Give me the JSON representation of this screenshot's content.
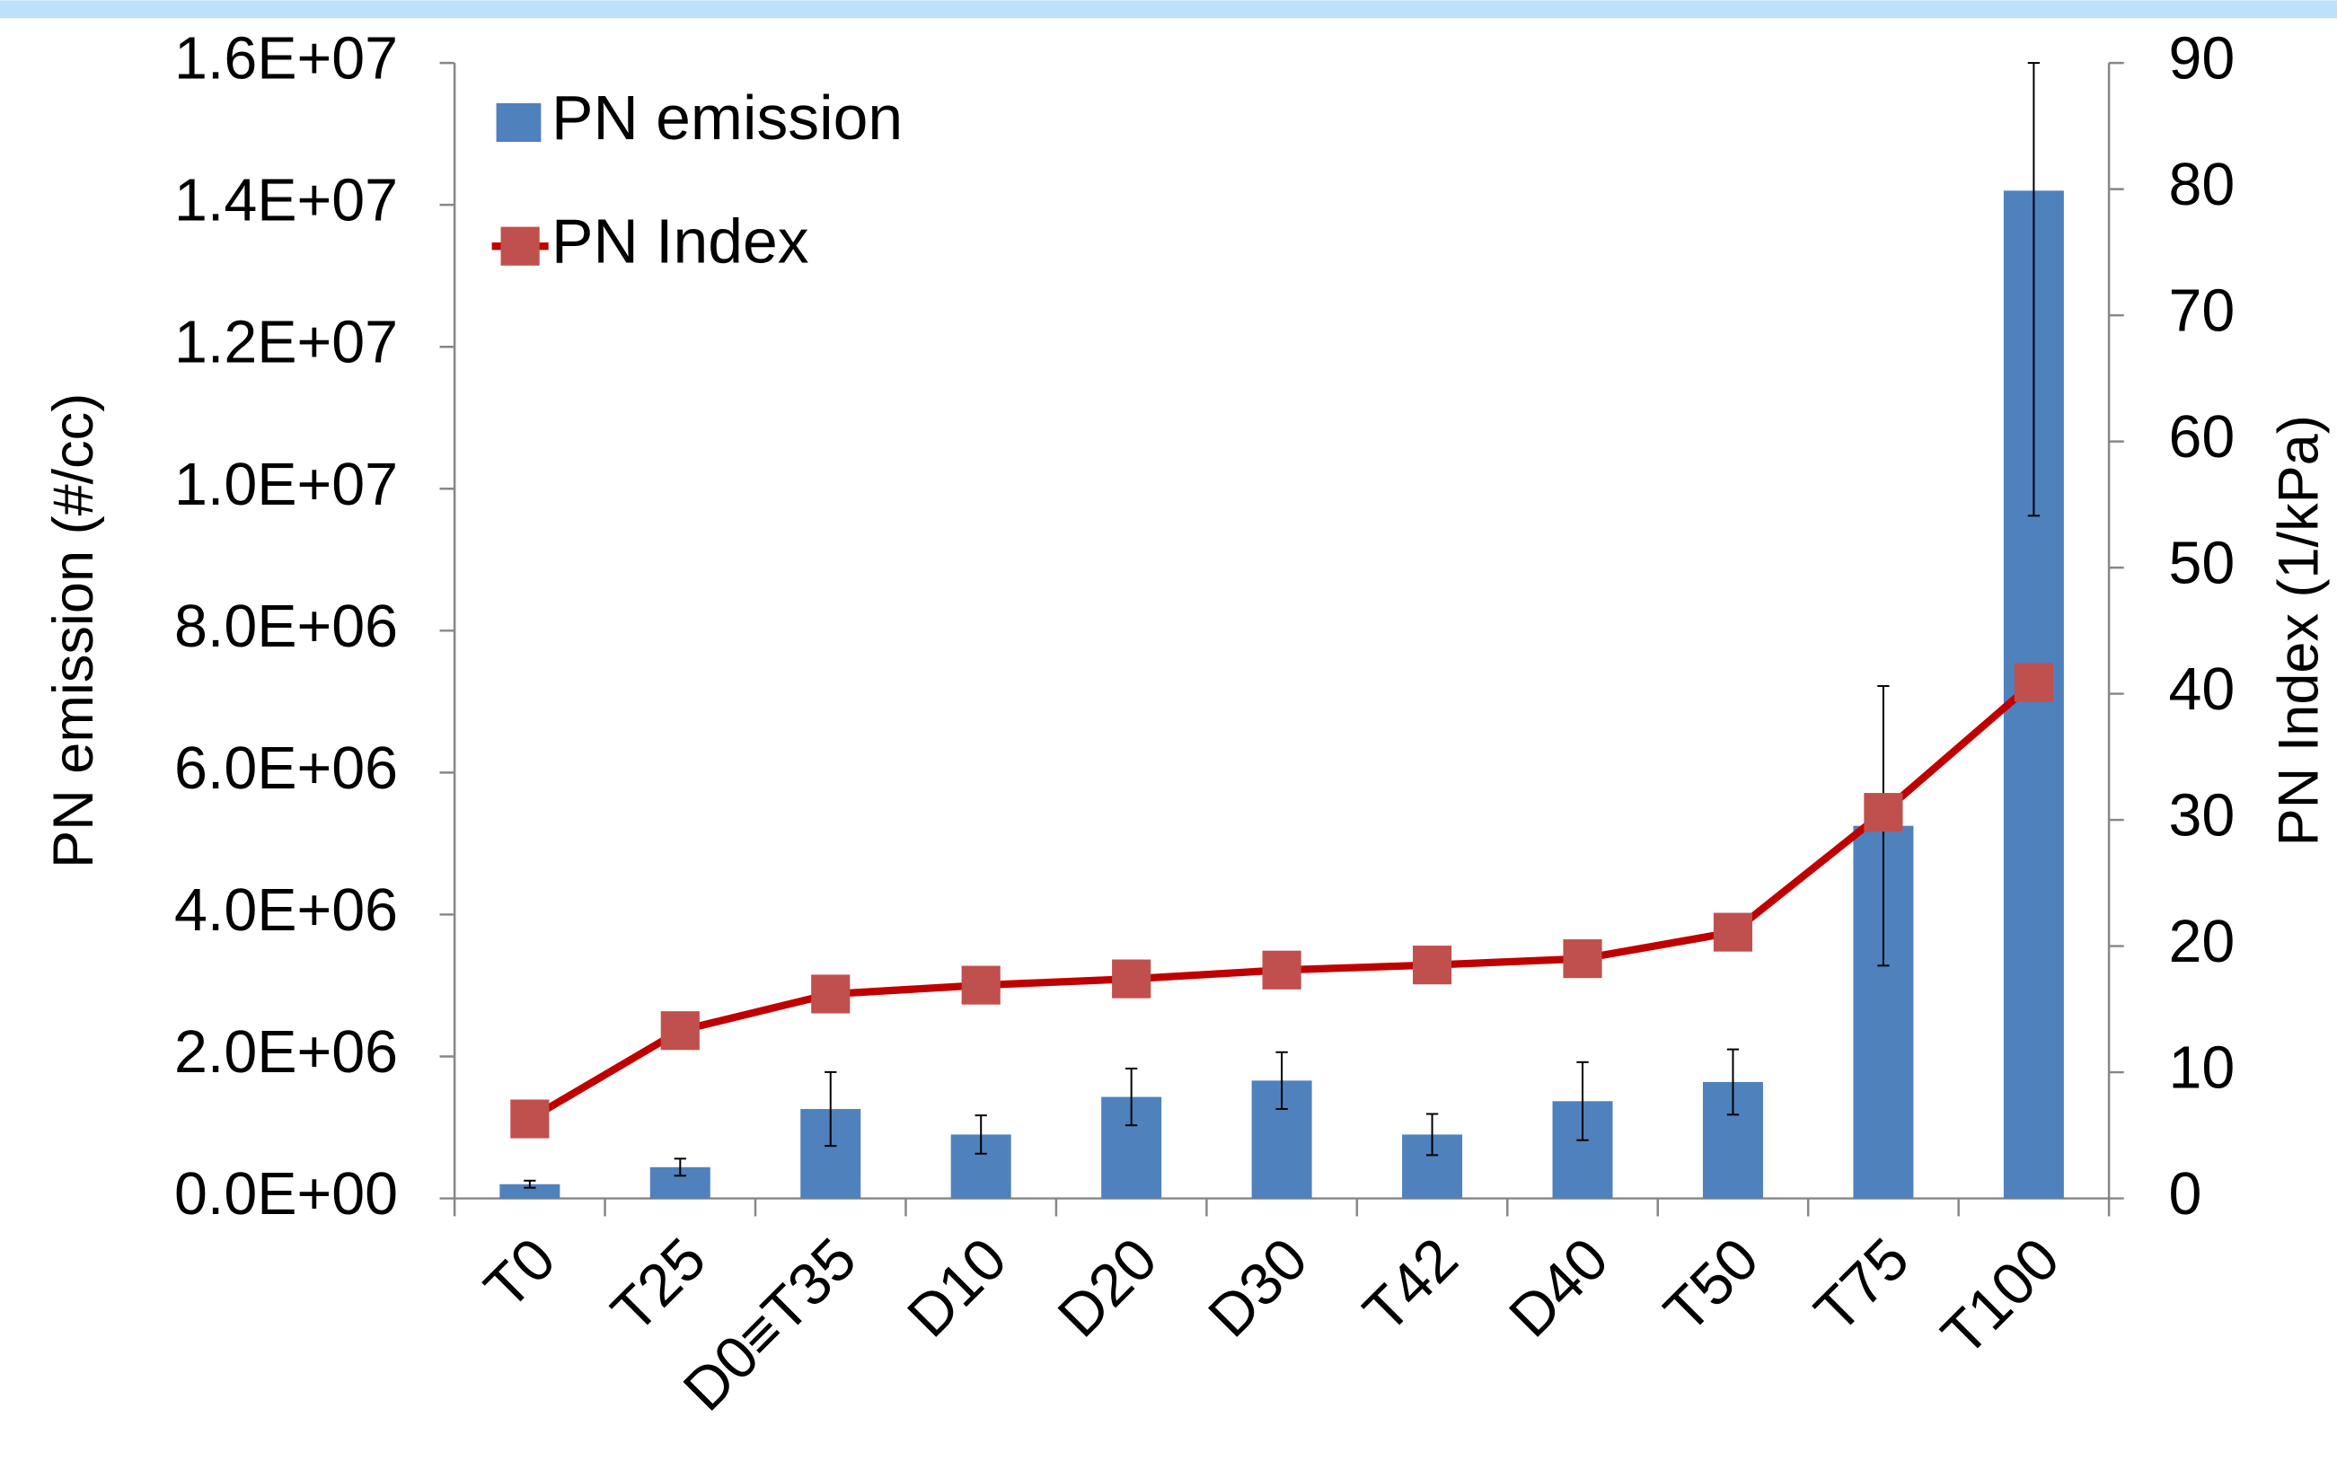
{
  "chart_data": {
    "type": "bar-line",
    "categories": [
      "T0",
      "T25",
      "D0≡T35",
      "D10",
      "D20",
      "D30",
      "T42",
      "D40",
      "T50",
      "T75",
      "T100"
    ],
    "series": [
      {
        "name": "PN emission",
        "type": "bar",
        "color": "#4f81bd",
        "values": [
          200000,
          440000,
          1260000,
          900000,
          1430000,
          1660000,
          900000,
          1370000,
          1640000,
          5250000,
          14200000
        ],
        "errors": [
          50000,
          120000,
          520000,
          270000,
          400000,
          400000,
          290000,
          550000,
          460000,
          1970000,
          4580000
        ]
      },
      {
        "name": "PN Index",
        "type": "line",
        "axis": "y2",
        "color": "#c00000",
        "marker_color": "#c0504d",
        "values": [
          6.3,
          13.3,
          16.2,
          16.9,
          17.4,
          18.1,
          18.5,
          19.0,
          21.1,
          30.6,
          40.9
        ]
      }
    ],
    "ylabel": "PN emission (#/cc)",
    "y2label": "PN Index (1/kPa)",
    "ylim": [
      0,
      16000000
    ],
    "yticks": [
      {
        "value": 0,
        "label": "0.0E+00"
      },
      {
        "value": 2000000,
        "label": "2.0E+06"
      },
      {
        "value": 4000000,
        "label": "4.0E+06"
      },
      {
        "value": 6000000,
        "label": "6.0E+06"
      },
      {
        "value": 8000000,
        "label": "8.0E+06"
      },
      {
        "value": 10000000,
        "label": "1.0E+07"
      },
      {
        "value": 12000000,
        "label": "1.2E+07"
      },
      {
        "value": 14000000,
        "label": "1.4E+07"
      },
      {
        "value": 16000000,
        "label": "1.6E+07"
      }
    ],
    "y2lim": [
      0,
      90
    ],
    "y2ticks": [
      0,
      10,
      20,
      30,
      40,
      50,
      60,
      70,
      80,
      90
    ],
    "legend": "upper left",
    "grid": false
  }
}
